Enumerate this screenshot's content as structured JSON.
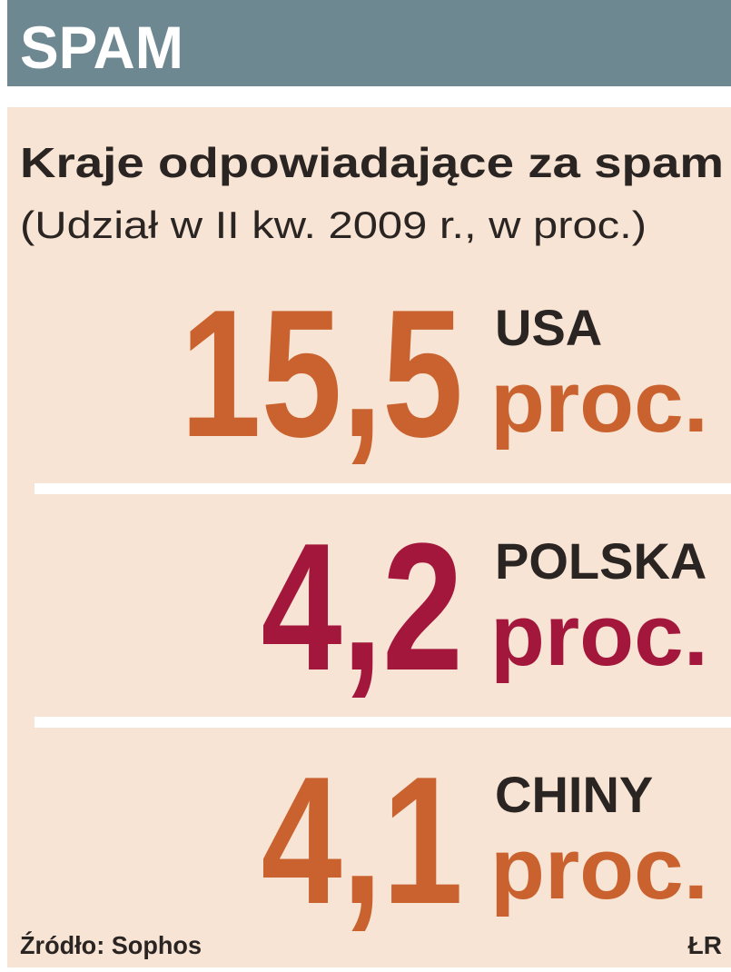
{
  "header": {
    "title": "SPAM"
  },
  "panel": {
    "title": "Kraje odpowiadające za spam",
    "subtitle": "(Udział w II kw. 2009 r., w proc.)",
    "items": [
      {
        "value": "15,5",
        "country": "USA",
        "unit": "proc."
      },
      {
        "value": "4,2",
        "country": "POLSKA",
        "unit": "proc."
      },
      {
        "value": "4,1",
        "country": "CHINY",
        "unit": "proc."
      }
    ],
    "source": "Źródło: Sophos",
    "credit": "ŁR"
  }
}
